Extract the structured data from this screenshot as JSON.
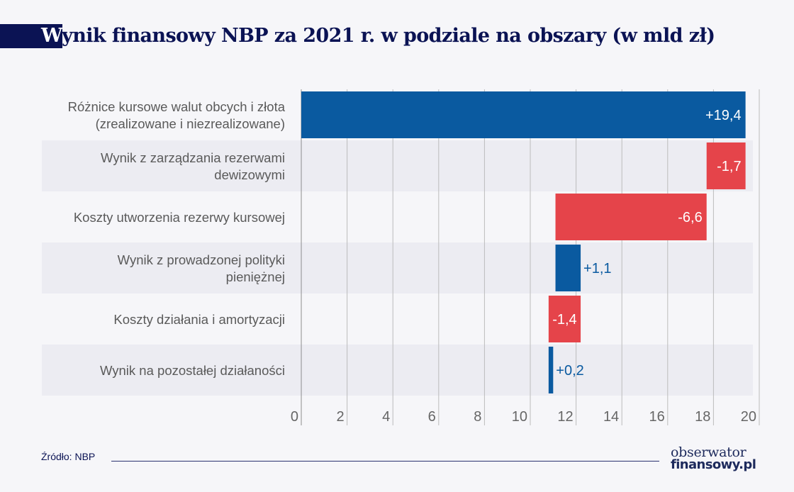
{
  "header": {
    "title_first_letter": "W",
    "title_rest": "ynik finansowy NBP za 2021 r. w podziale na obszary (w mld zł)"
  },
  "footer": {
    "source": "Źródło: NBP",
    "logo_line1": "obserwator",
    "logo_line2": "finansowy.pl"
  },
  "colors": {
    "positive": "#0a5aa0",
    "negative": "#e5444a",
    "title_navy": "#0b1354",
    "band": "#ececf2"
  },
  "chart_data": {
    "type": "bar",
    "subtype": "waterfall-horizontal",
    "title": "Wynik finansowy NBP za 2021 r. w podziale na obszary (w mld zł)",
    "xlabel": "",
    "ylabel": "",
    "xlim": [
      0,
      20
    ],
    "xticks": [
      "0",
      "2",
      "4",
      "6",
      "8",
      "10",
      "12",
      "14",
      "16",
      "18",
      "20"
    ],
    "grid": true,
    "categories": [
      [
        "Różnice kursowe walut obcych i złota",
        "(zrealizowane i niezrealizowane)"
      ],
      [
        "Wynik z zarządzania rezerwami",
        "dewizowymi"
      ],
      [
        "Koszty utworzenia rezerwy kursowej"
      ],
      [
        "Wynik z prowadzonej polityki",
        "pieniężnej"
      ],
      [
        "Koszty działania i amortyzacji"
      ],
      [
        "Wynik na pozostałej działaności"
      ]
    ],
    "values": [
      19.4,
      -1.7,
      -6.6,
      1.1,
      -1.4,
      0.2
    ],
    "value_labels": [
      "+19,4",
      "-1,7",
      "-6,6",
      "+1,1",
      "-1,4",
      "+0,2"
    ],
    "source": "Źródło: NBP"
  }
}
